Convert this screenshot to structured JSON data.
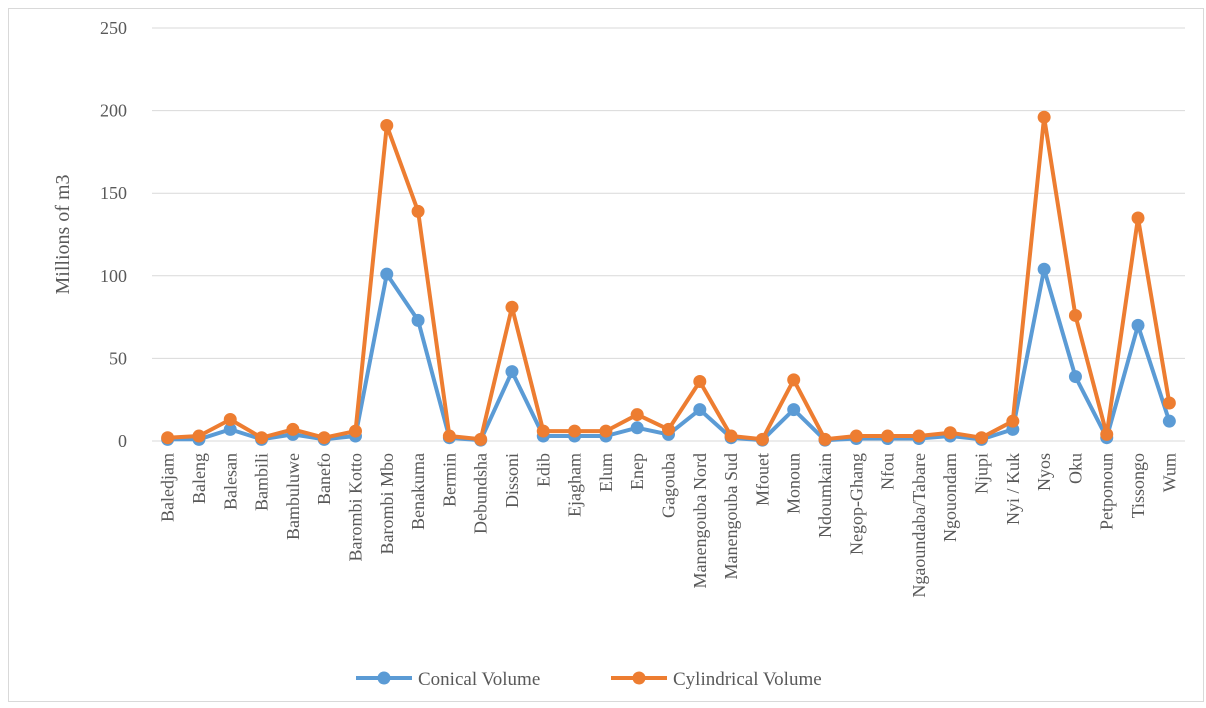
{
  "chart_data": {
    "type": "line",
    "ylabel": "Millions of m3",
    "xlabel": "",
    "ylim": [
      0,
      250
    ],
    "y_ticks": [
      0,
      50,
      100,
      150,
      200,
      250
    ],
    "grid": true,
    "legend_position": "bottom",
    "categories": [
      "Baledjam",
      "Baleng",
      "Balesan",
      "Bambili",
      "Bambuluwe",
      "Banefo",
      "Barombi Kotto",
      "Barombi Mbo",
      "Benakuma",
      "Bermin",
      "Debundsha",
      "Dissoni",
      "Edib",
      "Ejagham",
      "Elum",
      "Enep",
      "Gagouba",
      "Manengouba Nord",
      "Manengouba Sud",
      "Mfouet",
      "Monoun",
      "Ndoumkain",
      "Negop-Ghang",
      "Nfou",
      "Ngaoundaba/Tabare",
      "Ngouondam",
      "Njupi",
      "Nyi / Kuk",
      "Nyos",
      "Oku",
      "Petponoun",
      "Tissongo",
      "Wum"
    ],
    "series": [
      {
        "name": "Conical Volume",
        "color": "#5b9bd5",
        "values": [
          1,
          1,
          7,
          1,
          4,
          1,
          3,
          101,
          73,
          2,
          0.5,
          42,
          3,
          3,
          3,
          8,
          4,
          19,
          2,
          0.5,
          19,
          0.5,
          1.5,
          1.5,
          1.5,
          3,
          1,
          7,
          104,
          39,
          2,
          70,
          12
        ]
      },
      {
        "name": "Cylindrical Volume",
        "color": "#ed7d31",
        "values": [
          2,
          3,
          13,
          2,
          7,
          2,
          6,
          191,
          139,
          3,
          1,
          81,
          6,
          6,
          6,
          16,
          7,
          36,
          3,
          1,
          37,
          1,
          3,
          3,
          3,
          5,
          2,
          12,
          196,
          76,
          4,
          135,
          23
        ]
      }
    ]
  }
}
